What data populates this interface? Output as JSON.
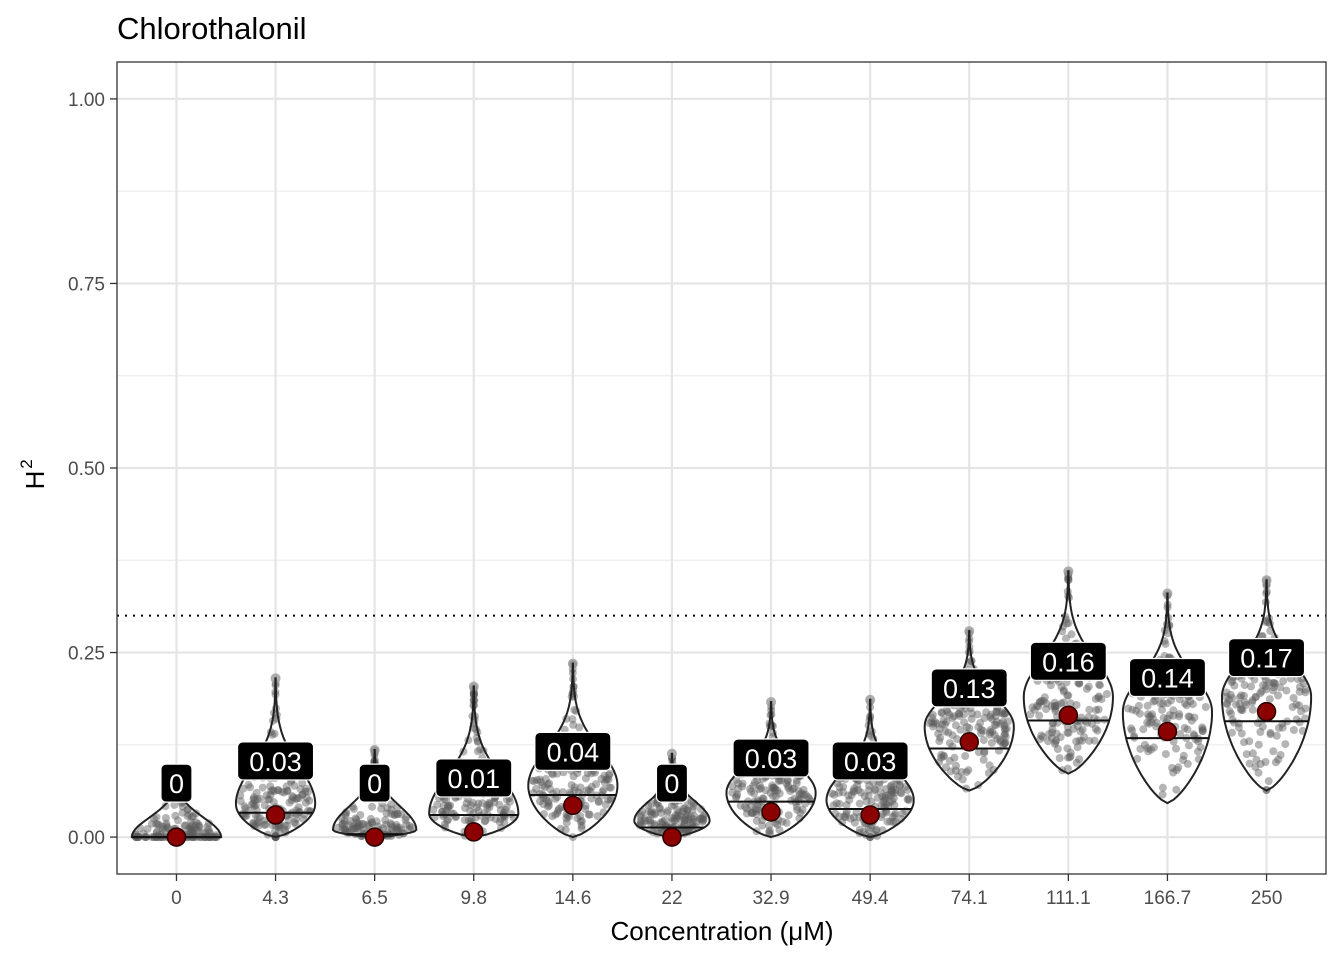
{
  "chart_data": {
    "type": "violin",
    "title": "Chlorothalonil",
    "xlabel": "Concentration (μM)",
    "ylabel": "H",
    "ylabel_superscript": "2",
    "ylim": [
      -0.05,
      1.05
    ],
    "yticks": [
      0.0,
      0.25,
      0.5,
      0.75,
      1.0
    ],
    "ytick_labels": [
      "0.00",
      "0.25",
      "0.50",
      "0.75",
      "1.00"
    ],
    "threshold": 0.3,
    "grid": true,
    "categories": [
      "0",
      "4.3",
      "6.5",
      "9.8",
      "14.6",
      "22",
      "32.9",
      "49.4",
      "74.1",
      "111.1",
      "166.7",
      "250"
    ],
    "means": [
      0.0,
      0.03,
      0.0,
      0.007,
      0.043,
      0.0,
      0.034,
      0.03,
      0.129,
      0.165,
      0.143,
      0.17
    ],
    "labels": [
      "0",
      "0.03",
      "0",
      "0.01",
      "0.04",
      "0",
      "0.03",
      "0.03",
      "0.13",
      "0.16",
      "0.14",
      "0.17"
    ],
    "medians": [
      0.0,
      0.033,
      0.004,
      0.03,
      0.057,
      0.013,
      0.048,
      0.038,
      0.12,
      0.158,
      0.134,
      0.157
    ],
    "mins": [
      0.0,
      0.0,
      0.0,
      0.0,
      0.0,
      0.0,
      0.0,
      0.0,
      0.063,
      0.086,
      0.046,
      0.063
    ],
    "maxs": [
      0.09,
      0.215,
      0.118,
      0.204,
      0.235,
      0.113,
      0.183,
      0.186,
      0.279,
      0.36,
      0.33,
      0.348
    ],
    "modes": [
      0.0,
      0.045,
      0.01,
      0.032,
      0.07,
      0.022,
      0.06,
      0.05,
      0.15,
      0.19,
      0.17,
      0.19
    ],
    "widths": [
      0.45,
      0.4,
      0.42,
      0.45,
      0.45,
      0.38,
      0.45,
      0.44,
      0.45,
      0.45,
      0.45,
      0.45
    ]
  }
}
